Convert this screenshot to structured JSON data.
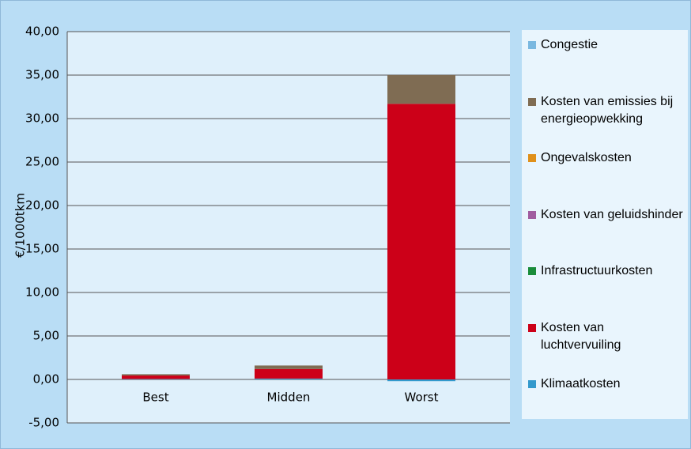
{
  "chart_data": {
    "type": "stacked_bar",
    "y_label": "€/1000tkm",
    "categories": [
      "Best",
      "Midden",
      "Worst"
    ],
    "series": [
      {
        "name": "Klimaatkosten",
        "color": "#3399cc",
        "values": [
          0.05,
          0.1,
          -0.2
        ]
      },
      {
        "name": "Kosten van luchtvervuiling",
        "color": "#cc0018",
        "values": [
          0.4,
          1.1,
          31.7
        ]
      },
      {
        "name": "Infrastructuurkosten",
        "color": "#1a8c3a",
        "values": [
          0,
          0,
          0
        ]
      },
      {
        "name": "Kosten van geluidshinder",
        "color": "#a05ca0",
        "values": [
          0,
          0,
          0
        ]
      },
      {
        "name": "Ongevalskosten",
        "color": "#e0901a",
        "values": [
          0,
          0,
          0
        ]
      },
      {
        "name": "Kosten van emissies bij energieopwekking",
        "color": "#7f6c53",
        "values": [
          0.15,
          0.4,
          3.3
        ]
      },
      {
        "name": "Congestie",
        "color": "#7ab8e0",
        "values": [
          0,
          0,
          0
        ]
      }
    ],
    "ylim": [
      -5,
      40
    ],
    "yticks": [
      {
        "value": -5,
        "label": "-5,00"
      },
      {
        "value": 0,
        "label": "0,00"
      },
      {
        "value": 5,
        "label": "5,00"
      },
      {
        "value": 10,
        "label": "10,00"
      },
      {
        "value": 15,
        "label": "15,00"
      },
      {
        "value": 20,
        "label": "20,00"
      },
      {
        "value": 25,
        "label": "25,00"
      },
      {
        "value": 30,
        "label": "30,00"
      },
      {
        "value": 35,
        "label": "35,00"
      },
      {
        "value": 40,
        "label": "40,00"
      }
    ],
    "grid": true
  }
}
